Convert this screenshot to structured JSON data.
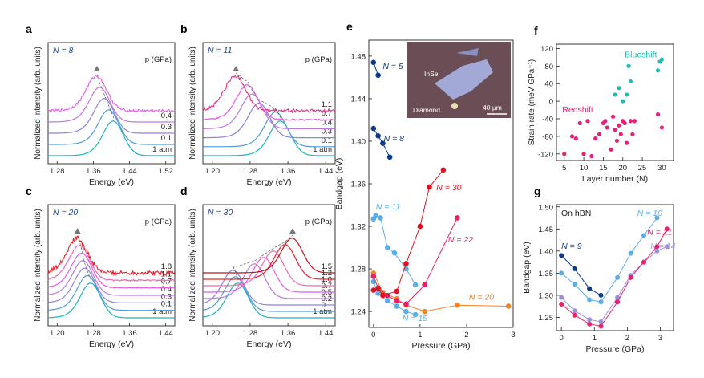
{
  "chart_data": [
    {
      "id": "a",
      "panel_label": "a",
      "type": "line",
      "n_label": "N = 8",
      "p_header": "p (GPa)",
      "xlim": [
        1.26,
        1.54
      ],
      "xticks": [
        "1.28",
        "1.36",
        "1.44",
        "1.52"
      ],
      "xtick_values": [
        1.28,
        1.36,
        1.44,
        1.52
      ],
      "xlabel": "Energy (eV)",
      "ylabel": "Normalized intensity (arb. units)",
      "series": [
        {
          "name": "1 atm",
          "center": 1.405,
          "color": "#1ab3bf",
          "noise": 0
        },
        {
          "name": "0.1",
          "center": 1.395,
          "color": "#4f9ad8",
          "noise": 0
        },
        {
          "name": "0.3",
          "center": 1.385,
          "color": "#8a84dc",
          "noise": 0
        },
        {
          "name": "0.4",
          "center": 1.375,
          "color": "#bd78e0",
          "noise": 0
        },
        {
          "name": "",
          "center": 1.368,
          "color": "#e45ce6",
          "noise": 0.4
        }
      ],
      "trend": "dashed shift to lower energy",
      "marker_peak_energy": 1.368
    },
    {
      "id": "b",
      "panel_label": "b",
      "type": "line",
      "n_label": "N = 11",
      "p_header": "p (GPa)",
      "xlim": [
        1.18,
        1.46
      ],
      "xticks": [
        "1.20",
        "1.28",
        "1.36",
        "1.44"
      ],
      "xtick_values": [
        1.2,
        1.28,
        1.36,
        1.44
      ],
      "xlabel": "Energy (eV)",
      "ylabel": "Normalized intensity (arb. units)",
      "series": [
        {
          "name": "1 atm",
          "center": 1.345,
          "color": "#1ab3bf",
          "noise": 0
        },
        {
          "name": "0.1",
          "center": 1.335,
          "color": "#4f9ad8",
          "noise": 0
        },
        {
          "name": "0.3",
          "center": 1.3,
          "color": "#8a84dc",
          "noise": 0
        },
        {
          "name": "0.4",
          "center": 1.285,
          "color": "#bd78e0",
          "noise": 0
        },
        {
          "name": "0.7",
          "center": 1.275,
          "color": "#e45ce6",
          "noise": 0.2
        },
        {
          "name": "1.1",
          "center": 1.25,
          "color": "#e0358a",
          "noise": 0.6
        }
      ],
      "trend": "dashed shift",
      "marker_peak_energy": 1.25
    },
    {
      "id": "c",
      "panel_label": "c",
      "type": "line",
      "n_label": "N = 20",
      "p_header": "p (GPa)",
      "xlim": [
        1.18,
        1.46
      ],
      "xticks": [
        "1.20",
        "1.28",
        "1.36",
        "1.44"
      ],
      "xtick_values": [
        1.2,
        1.28,
        1.36,
        1.44
      ],
      "xlabel": "Energy (eV)",
      "ylabel": "Normalized intensity (arb. units)",
      "series": [
        {
          "name": "1 atm",
          "center": 1.275,
          "color": "#1ab3bf",
          "noise": 0
        },
        {
          "name": "0.1",
          "center": 1.268,
          "color": "#4f9ad8",
          "noise": 0
        },
        {
          "name": "0.3",
          "center": 1.262,
          "color": "#8a84dc",
          "noise": 0
        },
        {
          "name": "0.4",
          "center": 1.258,
          "color": "#bd78e0",
          "noise": 0
        },
        {
          "name": "0.7",
          "center": 1.255,
          "color": "#e45ce6",
          "noise": 0.1
        },
        {
          "name": "1.1",
          "center": 1.25,
          "color": "#f06ab0",
          "noise": 0.2
        },
        {
          "name": "1.8",
          "center": 1.245,
          "color": "#e8202c",
          "noise": 0.7
        }
      ],
      "trend": "dashed shift",
      "marker_peak_energy": 1.245
    },
    {
      "id": "d",
      "panel_label": "d",
      "type": "line",
      "n_label": "N = 30",
      "p_header": "p (GPa)",
      "xlim": [
        1.18,
        1.46
      ],
      "xticks": [
        "1.20",
        "1.28",
        "1.36",
        "1.44"
      ],
      "xtick_values": [
        1.2,
        1.28,
        1.36,
        1.44
      ],
      "xlabel": "Energy (eV)",
      "ylabel": "Normalized intensity (arb. units)",
      "series": [
        {
          "name": "1 atm",
          "center": 1.255,
          "color": "#1ab3bf",
          "noise": 0
        },
        {
          "name": "0.1",
          "center": 1.25,
          "color": "#4f9ad8",
          "noise": 0
        },
        {
          "name": "0.2",
          "center": 1.245,
          "color": "#8a84dc",
          "noise": 0
        },
        {
          "name": "0.5",
          "center": 1.29,
          "color": "#bd78e0",
          "noise": 0
        },
        {
          "name": "0.7",
          "center": 1.31,
          "color": "#e45ce6",
          "noise": 0
        },
        {
          "name": "1.0",
          "center": 1.33,
          "color": "#f06ab0",
          "noise": 0
        },
        {
          "name": "1.2",
          "center": 1.355,
          "color": "#e8202c",
          "noise": 0
        },
        {
          "name": "1.5",
          "center": 1.37,
          "color": "#c8101c",
          "noise": 0
        }
      ],
      "trend": "dashed shift",
      "marker_peak_energy": 1.37
    },
    {
      "id": "e",
      "panel_label": "e",
      "type": "line",
      "xlim": [
        -0.1,
        3.0
      ],
      "ylim": [
        1.225,
        1.495
      ],
      "xticks": [
        "0",
        "1",
        "2",
        "3"
      ],
      "xtick_values": [
        0,
        1,
        2,
        3
      ],
      "yticks": [
        "1.24",
        "1.28",
        "1.32",
        "1.36",
        "1.40",
        "1.44",
        "1.48"
      ],
      "ytick_values": [
        1.24,
        1.28,
        1.32,
        1.36,
        1.4,
        1.44,
        1.48
      ],
      "xlabel": "Pressure (GPa)",
      "ylabel": "Bandgap (eV)",
      "inset_labels": {
        "top": "InSe",
        "bottom": "Diamond",
        "scale": "40 μm"
      },
      "series": [
        {
          "name": "N = 5",
          "color": "#0b3c8c",
          "x": [
            0.0,
            0.1
          ],
          "y": [
            1.474,
            1.462
          ]
        },
        {
          "name": "N = 8",
          "color": "#0b3c8c",
          "x": [
            0.0,
            0.1,
            0.2,
            0.35
          ],
          "y": [
            1.412,
            1.405,
            1.398,
            1.385
          ]
        },
        {
          "name": "N = 11",
          "color": "#5aaee8",
          "x": [
            0.0,
            0.05,
            0.15,
            0.3,
            0.45,
            0.7,
            0.9
          ],
          "y": [
            1.327,
            1.33,
            1.328,
            1.3,
            1.295,
            1.28,
            1.265
          ]
        },
        {
          "name": "N = 15",
          "color": "#5aaee8",
          "x": [
            0.0,
            0.1,
            0.3,
            0.5,
            0.7,
            0.9
          ],
          "y": [
            1.268,
            1.257,
            1.25,
            1.245,
            1.24,
            1.237
          ]
        },
        {
          "name": "N = 20",
          "color": "#f58220",
          "x": [
            0.0,
            0.2,
            0.5,
            0.7,
            1.1,
            1.8,
            2.9
          ],
          "y": [
            1.276,
            1.258,
            1.252,
            1.246,
            1.24,
            1.246,
            1.245
          ]
        },
        {
          "name": "N = 22",
          "color": "#e8206a",
          "x": [
            0.0,
            0.1,
            0.3,
            0.5,
            0.7,
            1.1,
            1.8
          ],
          "y": [
            1.273,
            1.262,
            1.255,
            1.25,
            1.247,
            1.265,
            1.328
          ]
        },
        {
          "name": "N = 30",
          "color": "#e01020",
          "x": [
            0.0,
            0.1,
            0.2,
            0.5,
            0.7,
            1.0,
            1.2,
            1.5
          ],
          "y": [
            1.26,
            1.262,
            1.255,
            1.259,
            1.285,
            1.32,
            1.357,
            1.373
          ]
        }
      ]
    },
    {
      "id": "f",
      "panel_label": "f",
      "type": "scatter",
      "xlim": [
        3,
        33
      ],
      "ylim": [
        -135,
        130
      ],
      "xticks": [
        "5",
        "10",
        "15",
        "20",
        "25",
        "30"
      ],
      "xtick_values": [
        5,
        10,
        15,
        20,
        25,
        30
      ],
      "yticks": [
        "-120",
        "-80",
        "-40",
        "0",
        "40",
        "80",
        "120"
      ],
      "ytick_values": [
        -120,
        -80,
        -40,
        0,
        40,
        80,
        120
      ],
      "xlabel": "Layer number (N)",
      "ylabel": "Strain rate (meV GPa⁻¹)",
      "annotations": {
        "blue": "Blueshift",
        "red": "Redshift"
      },
      "series": [
        {
          "name": "Blueshift",
          "color": "#20bdb8",
          "x": [
            18,
            19,
            20,
            21,
            21.5,
            22,
            29,
            29.5,
            30
          ],
          "y": [
            15,
            30,
            0,
            15,
            80,
            45,
            70,
            90,
            95
          ]
        },
        {
          "name": "Redshift",
          "color": "#e8207a",
          "x": [
            5,
            7,
            8,
            9,
            10,
            11,
            12,
            13,
            14,
            15,
            15.5,
            16,
            17,
            17.5,
            18,
            18.5,
            19,
            19.5,
            20,
            20.5,
            21,
            22,
            22.5,
            23,
            29,
            30
          ],
          "y": [
            -120,
            -80,
            -85,
            -50,
            -120,
            -45,
            -125,
            -85,
            -75,
            -50,
            -45,
            -60,
            -110,
            -35,
            -65,
            -90,
            -55,
            -75,
            -45,
            -50,
            -95,
            -45,
            -75,
            -45,
            -30,
            -60
          ]
        }
      ]
    },
    {
      "id": "g",
      "panel_label": "g",
      "type": "line",
      "xlim": [
        -0.15,
        3.4
      ],
      "ylim": [
        1.22,
        1.505
      ],
      "xticks": [
        "0",
        "1",
        "2",
        "3"
      ],
      "xtick_values": [
        0,
        1,
        2,
        3
      ],
      "yticks": [
        "1.25",
        "1.30",
        "1.35",
        "1.40",
        "1.45",
        "1.50"
      ],
      "ytick_values": [
        1.25,
        1.3,
        1.35,
        1.4,
        1.45,
        1.5
      ],
      "xlabel": "Pressure (GPa)",
      "ylabel": "Bandgap (eV)",
      "annotation": "On hBN",
      "series": [
        {
          "name": "N = 9",
          "color": "#0b3c8c",
          "x": [
            0.0,
            0.4,
            0.85,
            1.2
          ],
          "y": [
            1.39,
            1.36,
            1.315,
            1.3
          ]
        },
        {
          "name": "N = 10",
          "color": "#5aaee8",
          "x": [
            0.0,
            0.4,
            0.85,
            1.2,
            1.7,
            2.1,
            2.5,
            2.9
          ],
          "y": [
            1.35,
            1.325,
            1.29,
            1.285,
            1.34,
            1.395,
            1.435,
            1.475
          ]
        },
        {
          "name": "N = 14",
          "color": "#9b8fe0",
          "x": [
            0.0,
            0.4,
            0.85,
            1.2,
            1.7,
            2.1,
            2.5,
            2.9,
            3.2
          ],
          "y": [
            1.295,
            1.265,
            1.245,
            1.24,
            1.295,
            1.345,
            1.375,
            1.4,
            1.41
          ]
        },
        {
          "name": "N = 21",
          "color": "#e8206a",
          "x": [
            0.0,
            0.4,
            0.85,
            1.2,
            1.7,
            2.1,
            2.5,
            2.9,
            3.2
          ],
          "y": [
            1.28,
            1.255,
            1.235,
            1.23,
            1.285,
            1.34,
            1.375,
            1.41,
            1.45
          ]
        }
      ]
    }
  ]
}
